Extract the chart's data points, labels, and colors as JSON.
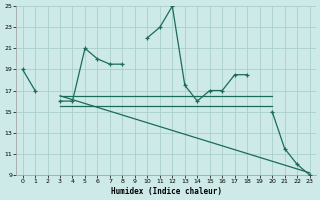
{
  "title": "",
  "xlabel": "Humidex (Indice chaleur)",
  "background_color": "#ceeae8",
  "grid_color": "#aacfcc",
  "line_color": "#1a6b5a",
  "xlim": [
    -0.5,
    23.5
  ],
  "ylim": [
    9,
    25
  ],
  "xticks": [
    0,
    1,
    2,
    3,
    4,
    5,
    6,
    7,
    8,
    9,
    10,
    11,
    12,
    13,
    14,
    15,
    16,
    17,
    18,
    19,
    20,
    21,
    22,
    23
  ],
  "yticks": [
    9,
    11,
    13,
    15,
    17,
    19,
    21,
    23,
    25
  ],
  "line1_x": [
    0,
    1,
    3,
    4,
    5,
    6,
    7,
    8,
    10,
    11,
    12,
    13,
    14,
    15,
    16,
    17,
    18,
    20,
    21,
    22,
    23
  ],
  "line1_y": [
    19,
    17,
    16,
    16,
    21,
    20,
    19.5,
    19.5,
    22,
    23,
    25,
    17.5,
    16,
    17,
    17,
    18.5,
    18.5,
    15,
    11.5,
    10,
    9
  ],
  "line1_gaps": [
    [
      1,
      2
    ],
    [
      8,
      9
    ],
    [
      18,
      19
    ]
  ],
  "line2_x": [
    3,
    20
  ],
  "line2_y": [
    16.5,
    16.5
  ],
  "line3_x": [
    3,
    20
  ],
  "line3_y": [
    15.5,
    15.5
  ],
  "line4_x": [
    3,
    23
  ],
  "line4_y": [
    16.5,
    9.2
  ]
}
